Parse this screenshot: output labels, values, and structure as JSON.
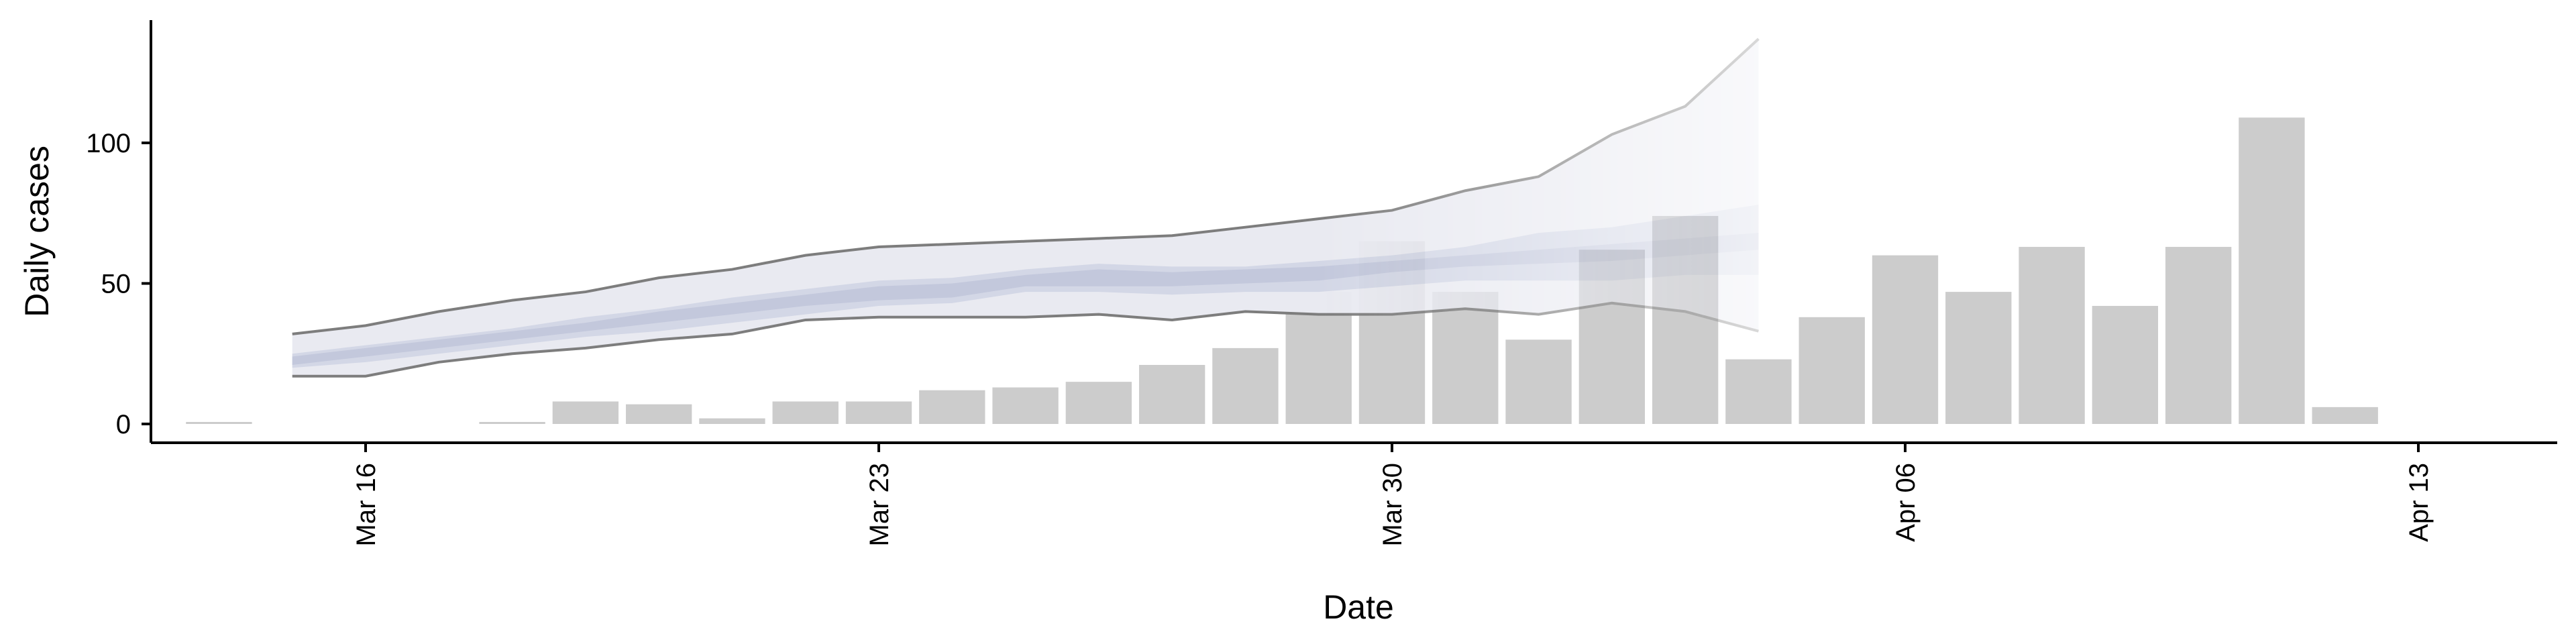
{
  "chart_data": {
    "type": "bar",
    "title": "",
    "xlabel": "Date",
    "ylabel": "Daily cases",
    "x_ticks": [
      "Mar 16",
      "Mar 23",
      "Mar 30",
      "Apr 06",
      "Apr 13"
    ],
    "y_ticks": [
      "0",
      "50",
      "100"
    ],
    "ylim": [
      -5,
      145
    ],
    "grid": false,
    "legend": "none",
    "series": [
      {
        "type": "bar",
        "x": [
          "2020-03-14",
          "2020-03-15",
          "2020-03-16",
          "2020-03-17",
          "2020-03-18",
          "2020-03-19",
          "2020-03-20",
          "2020-03-21",
          "2020-03-22",
          "2020-03-23",
          "2020-03-24",
          "2020-03-25",
          "2020-03-26",
          "2020-03-27",
          "2020-03-28",
          "2020-03-29",
          "2020-03-30",
          "2020-03-31",
          "2020-04-01",
          "2020-04-02",
          "2020-04-03",
          "2020-04-04",
          "2020-04-05",
          "2020-04-06",
          "2020-04-07",
          "2020-04-08",
          "2020-04-09",
          "2020-04-10",
          "2020-04-11",
          "2020-04-12",
          "2020-04-13"
        ],
        "values": [
          0.5,
          0,
          0,
          0,
          0.5,
          8,
          7,
          2,
          8,
          8,
          12,
          13,
          15,
          21,
          27,
          47,
          65,
          47,
          30,
          62,
          74,
          23,
          38,
          60,
          47,
          63,
          42,
          63,
          109,
          6,
          null
        ]
      },
      {
        "type": "band",
        "x": [
          "2020-03-15",
          "2020-03-16",
          "2020-03-17",
          "2020-03-18",
          "2020-03-19",
          "2020-03-20",
          "2020-03-21",
          "2020-03-22",
          "2020-03-23",
          "2020-03-24",
          "2020-03-25",
          "2020-03-26",
          "2020-03-27",
          "2020-03-28",
          "2020-03-29",
          "2020-03-30",
          "2020-03-31",
          "2020-04-01",
          "2020-04-02",
          "2020-04-03",
          "2020-04-04"
        ],
        "outer_lower": [
          17,
          17,
          22,
          25,
          27,
          30,
          32,
          37,
          38,
          38,
          38,
          39,
          37,
          40,
          39,
          39,
          41,
          39,
          43,
          40,
          33
        ],
        "outer_upper": [
          32,
          35,
          40,
          44,
          47,
          52,
          55,
          60,
          63,
          64,
          65,
          66,
          67,
          70,
          73,
          76,
          83,
          88,
          103,
          113,
          137
        ],
        "inner_lower": [
          20,
          22,
          25,
          28,
          31,
          33,
          36,
          39,
          42,
          43,
          47,
          47,
          46,
          47,
          47,
          49,
          51,
          51,
          51,
          53,
          53
        ],
        "inner_upper": [
          25,
          28,
          31,
          34,
          38,
          41,
          45,
          48,
          51,
          52,
          55,
          57,
          56,
          56,
          58,
          60,
          63,
          68,
          70,
          74,
          78
        ],
        "core_lower": [
          21,
          24,
          27,
          30,
          33,
          36,
          39,
          42,
          44,
          45,
          49,
          49,
          49,
          50,
          51,
          54,
          56,
          57,
          58,
          60,
          62
        ],
        "core_upper": [
          24,
          27,
          30,
          33,
          36,
          40,
          43,
          46,
          49,
          50,
          53,
          55,
          54,
          55,
          56,
          58,
          60,
          62,
          64,
          66,
          68
        ],
        "fade_start": "2020-03-29"
      }
    ],
    "colors": {
      "bar": "#cccccc",
      "outer_band": "#e9eaf1",
      "inner_band": "#d3d7e6",
      "core_band": "#c3c8dc",
      "band_line": "#7d7d7d",
      "axis": "#000000"
    }
  }
}
